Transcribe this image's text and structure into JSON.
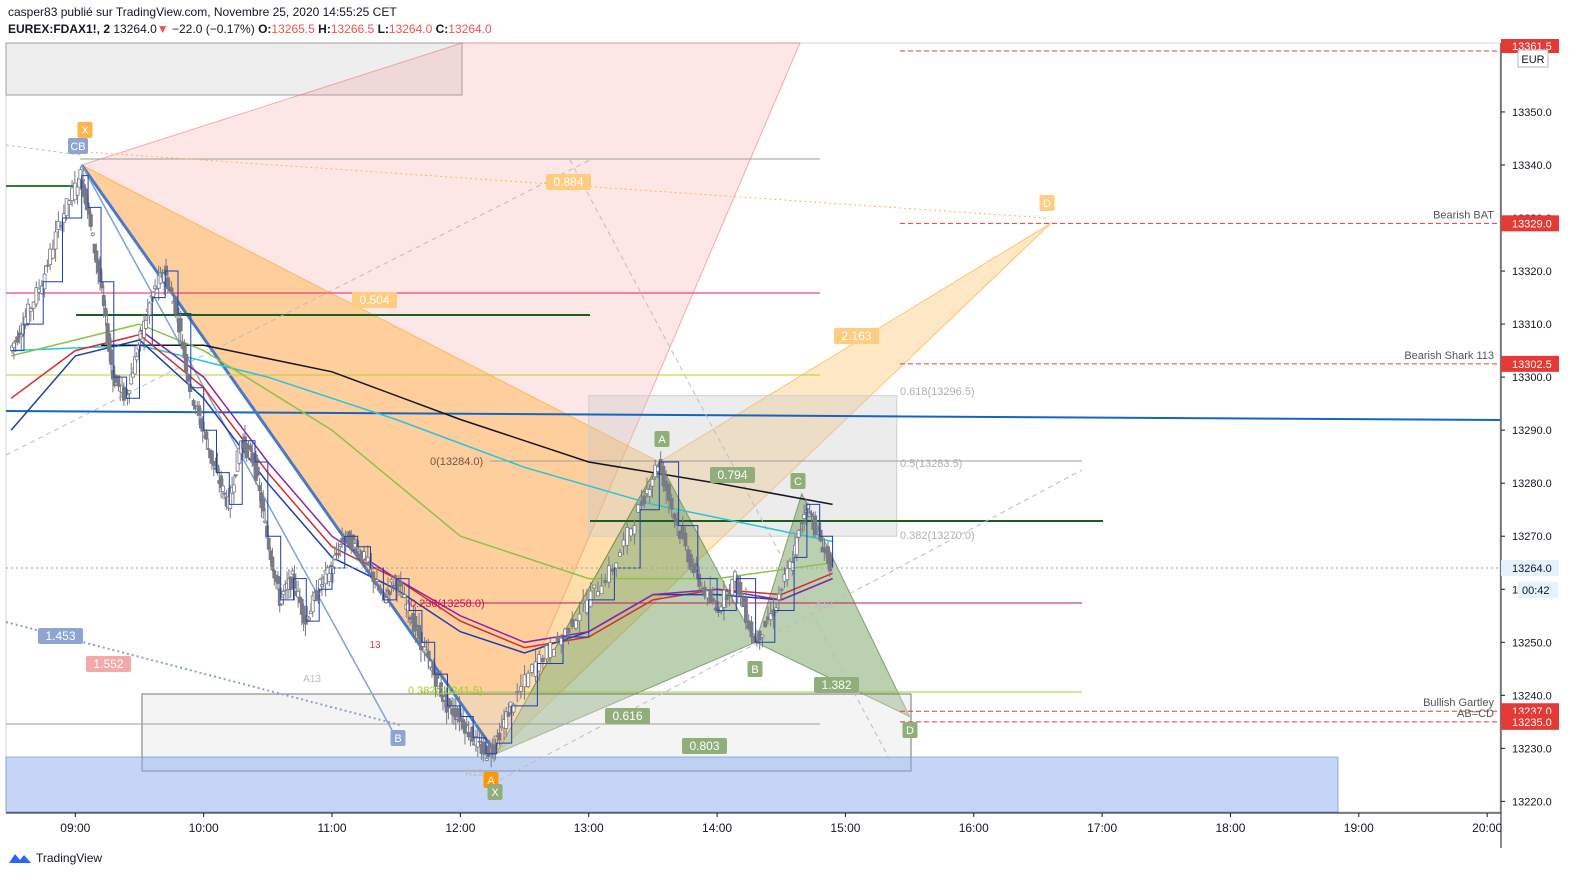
{
  "header": {
    "publisher_line": "casper83 publié sur TradingView.com, Novembre 25, 2020 14:55:25 CET",
    "symbol": "EUREX:FDAX1!, 2",
    "last": "13264.0",
    "change": "−22.0 (−0.17%)",
    "open_label": "O:",
    "open": "13265.5",
    "high_label": "H:",
    "high": "13266.5",
    "low_label": "L:",
    "low": "13264.0",
    "close_label": "C:",
    "close": "13264.0",
    "down_arrow": "▼"
  },
  "brand": {
    "name": "TradingView",
    "logo_icon": "tradingview-logo-icon"
  },
  "price_axis": {
    "currency": "EUR",
    "top_partial_label": "13361.5",
    "countdown": "00:42"
  },
  "chart_data": {
    "type": "candlestick",
    "symbol": "EUREX:FDAX1!",
    "interval": "2",
    "currency": "EUR",
    "ylim": [
      13218,
      13363
    ],
    "y_ticks": [
      13220,
      13230,
      13240,
      13250,
      13260,
      13270,
      13280,
      13290,
      13300,
      13310,
      13320,
      13330,
      13340,
      13350
    ],
    "y_tick_labels": [
      "13220.0",
      "13230.0",
      "13240.0",
      "13250.0",
      "13260.0",
      "13270.0",
      "13280.0",
      "13290.0",
      "13300.0",
      "13310.0",
      "13320.0",
      "13330.0",
      "13340.0",
      "13350.0"
    ],
    "x_ticks": [
      "09:00",
      "10:00",
      "11:00",
      "12:00",
      "13:00",
      "14:00",
      "15:00",
      "16:00",
      "17:00",
      "18:00",
      "19:00",
      "20:00"
    ],
    "xlim_hours": [
      8.46,
      20.1
    ],
    "price_path": [
      [
        8.5,
        13305
      ],
      [
        8.6,
        13310
      ],
      [
        8.75,
        13318
      ],
      [
        8.9,
        13330
      ],
      [
        9.05,
        13338
      ],
      [
        9.1,
        13332
      ],
      [
        9.2,
        13318
      ],
      [
        9.3,
        13300
      ],
      [
        9.4,
        13296
      ],
      [
        9.5,
        13306
      ],
      [
        9.6,
        13315
      ],
      [
        9.7,
        13320
      ],
      [
        9.8,
        13312
      ],
      [
        9.9,
        13298
      ],
      [
        10.0,
        13290
      ],
      [
        10.1,
        13282
      ],
      [
        10.2,
        13276
      ],
      [
        10.3,
        13288
      ],
      [
        10.4,
        13284
      ],
      [
        10.5,
        13270
      ],
      [
        10.6,
        13258
      ],
      [
        10.7,
        13262
      ],
      [
        10.8,
        13254
      ],
      [
        10.9,
        13260
      ],
      [
        11.0,
        13264
      ],
      [
        11.1,
        13270
      ],
      [
        11.2,
        13268
      ],
      [
        11.3,
        13264
      ],
      [
        11.4,
        13258
      ],
      [
        11.5,
        13262
      ],
      [
        11.6,
        13256
      ],
      [
        11.7,
        13250
      ],
      [
        11.8,
        13244
      ],
      [
        11.9,
        13238
      ],
      [
        12.0,
        13236
      ],
      [
        12.1,
        13232
      ],
      [
        12.2,
        13229
      ],
      [
        12.28,
        13231
      ],
      [
        12.4,
        13238
      ],
      [
        12.6,
        13246
      ],
      [
        12.8,
        13251
      ],
      [
        13.0,
        13258
      ],
      [
        13.2,
        13264
      ],
      [
        13.4,
        13275
      ],
      [
        13.55,
        13284
      ],
      [
        13.7,
        13272
      ],
      [
        13.85,
        13262
      ],
      [
        14.0,
        13256
      ],
      [
        14.15,
        13262
      ],
      [
        14.3,
        13250
      ],
      [
        14.45,
        13256
      ],
      [
        14.6,
        13266
      ],
      [
        14.7,
        13276
      ],
      [
        14.8,
        13270
      ],
      [
        14.9,
        13264
      ]
    ],
    "moving_averages": [
      {
        "color": "#26c6da",
        "points": [
          [
            8.5,
            13305
          ],
          [
            9.5,
            13306
          ],
          [
            10.5,
            13300
          ],
          [
            11.5,
            13292
          ],
          [
            12.5,
            13283
          ],
          [
            13.5,
            13276
          ],
          [
            14.5,
            13271
          ],
          [
            14.9,
            13269
          ]
        ]
      },
      {
        "color": "#131722",
        "points": [
          [
            9.2,
            13306
          ],
          [
            10.0,
            13306
          ],
          [
            11.0,
            13301
          ],
          [
            12.0,
            13292
          ],
          [
            13.0,
            13284
          ],
          [
            14.0,
            13280
          ],
          [
            14.9,
            13276
          ]
        ]
      },
      {
        "color": "#d32f2f",
        "points": [
          [
            8.5,
            13296
          ],
          [
            9.0,
            13305
          ],
          [
            9.5,
            13308
          ],
          [
            10.0,
            13298
          ],
          [
            10.5,
            13282
          ],
          [
            11.0,
            13268
          ],
          [
            11.5,
            13262
          ],
          [
            12.0,
            13254
          ],
          [
            12.5,
            13249
          ],
          [
            13.0,
            13251
          ],
          [
            13.5,
            13258
          ],
          [
            14.0,
            13260
          ],
          [
            14.5,
            13259
          ],
          [
            14.9,
            13263
          ]
        ]
      },
      {
        "color": "#1e3fae",
        "points": [
          [
            8.5,
            13290
          ],
          [
            9.0,
            13304
          ],
          [
            9.5,
            13307
          ],
          [
            10.0,
            13296
          ],
          [
            10.5,
            13280
          ],
          [
            11.0,
            13266
          ],
          [
            11.5,
            13260
          ],
          [
            12.0,
            13252
          ],
          [
            12.5,
            13248
          ],
          [
            13.0,
            13252
          ],
          [
            13.5,
            13259
          ],
          [
            14.0,
            13259
          ],
          [
            14.5,
            13258
          ],
          [
            14.9,
            13262
          ]
        ]
      },
      {
        "color": "#8e24aa",
        "points": [
          [
            9.5,
            13309
          ],
          [
            10.0,
            13300
          ],
          [
            10.5,
            13284
          ],
          [
            11.0,
            13270
          ],
          [
            11.5,
            13262
          ],
          [
            12.0,
            13255
          ],
          [
            12.5,
            13250
          ],
          [
            13.0,
            13252
          ],
          [
            13.5,
            13259
          ],
          [
            14.0,
            13260
          ],
          [
            14.5,
            13258
          ],
          [
            14.9,
            13262
          ]
        ]
      },
      {
        "color": "#8bc34a",
        "points": [
          [
            8.5,
            13304
          ],
          [
            9.5,
            13310
          ],
          [
            10.0,
            13305
          ],
          [
            11.0,
            13290
          ],
          [
            12.0,
            13270
          ],
          [
            13.0,
            13262
          ],
          [
            14.0,
            13262
          ],
          [
            14.9,
            13265
          ]
        ]
      }
    ],
    "horizontal_lines": [
      {
        "price": 13361.5,
        "color": "#e53935",
        "style": "dashed"
      },
      {
        "price": 13329.0,
        "color": "#e53935",
        "style": "dashed",
        "label": "Bearish BAT"
      },
      {
        "price": 13302.5,
        "color": "#e53935",
        "style": "dashed",
        "label": "Bearish Shark 113"
      },
      {
        "price": 13237.0,
        "color": "#e53935",
        "style": "dashed",
        "label": "Bullish Gartley"
      },
      {
        "price": 13235.0,
        "color": "#e53935",
        "style": "dashed",
        "label": "AB=CD"
      },
      {
        "price": 13264.0,
        "color": "#9e9e9e",
        "style": "dotted"
      }
    ],
    "price_tags": [
      {
        "price": 13329.0,
        "text": "13329.0",
        "color": "#e53935"
      },
      {
        "price": 13302.5,
        "text": "13302.5",
        "color": "#e53935"
      },
      {
        "price": 13264.0,
        "text": "13264.0",
        "color": "#e3f2fd"
      },
      {
        "price": 13237.0,
        "text": "13237.0",
        "color": "#e53935"
      },
      {
        "price": 13235.0,
        "text": "13235.0",
        "color": "#e53935"
      }
    ],
    "fib_labels": [
      {
        "text": "0.618(13296.5)",
        "price": 13296.5,
        "color": "#b0b0b0"
      },
      {
        "text": "0.5(13283.5)",
        "price": 13283.5,
        "color": "#b0b0b0"
      },
      {
        "text": "0.382(13270.0)",
        "price": 13270.0,
        "color": "#b0b0b0"
      },
      {
        "text": "0(13284.0)",
        "price": 13284.0,
        "color": "#795548"
      },
      {
        "text": "0.236(13258.0)",
        "price": 13258.0,
        "color": "#c2185b"
      },
      {
        "text": "0.382(13241.5)",
        "price": 13241.5,
        "color": "#9acd32"
      }
    ],
    "ratio_labels": [
      {
        "text": "0.884",
        "bg": "#ffcc80"
      },
      {
        "text": "0.504",
        "bg": "#ffcc80"
      },
      {
        "text": "2.163",
        "bg": "#ffcc80"
      },
      {
        "text": "1.453",
        "bg": "#90a4d0"
      },
      {
        "text": "1.552",
        "bg": "#f4a8a8"
      },
      {
        "text": "0.794",
        "bg": "#8fae7a"
      },
      {
        "text": "1.382",
        "bg": "#8fae7a"
      },
      {
        "text": "0.616",
        "bg": "#8fae7a"
      },
      {
        "text": "0.803",
        "bg": "#8fae7a"
      }
    ],
    "point_labels": [
      "X",
      "CB",
      "A",
      "C",
      "B",
      "D",
      "A",
      "X",
      "D",
      "B"
    ],
    "misc_labels": [
      "A13",
      "A13",
      "A13",
      "13"
    ]
  }
}
